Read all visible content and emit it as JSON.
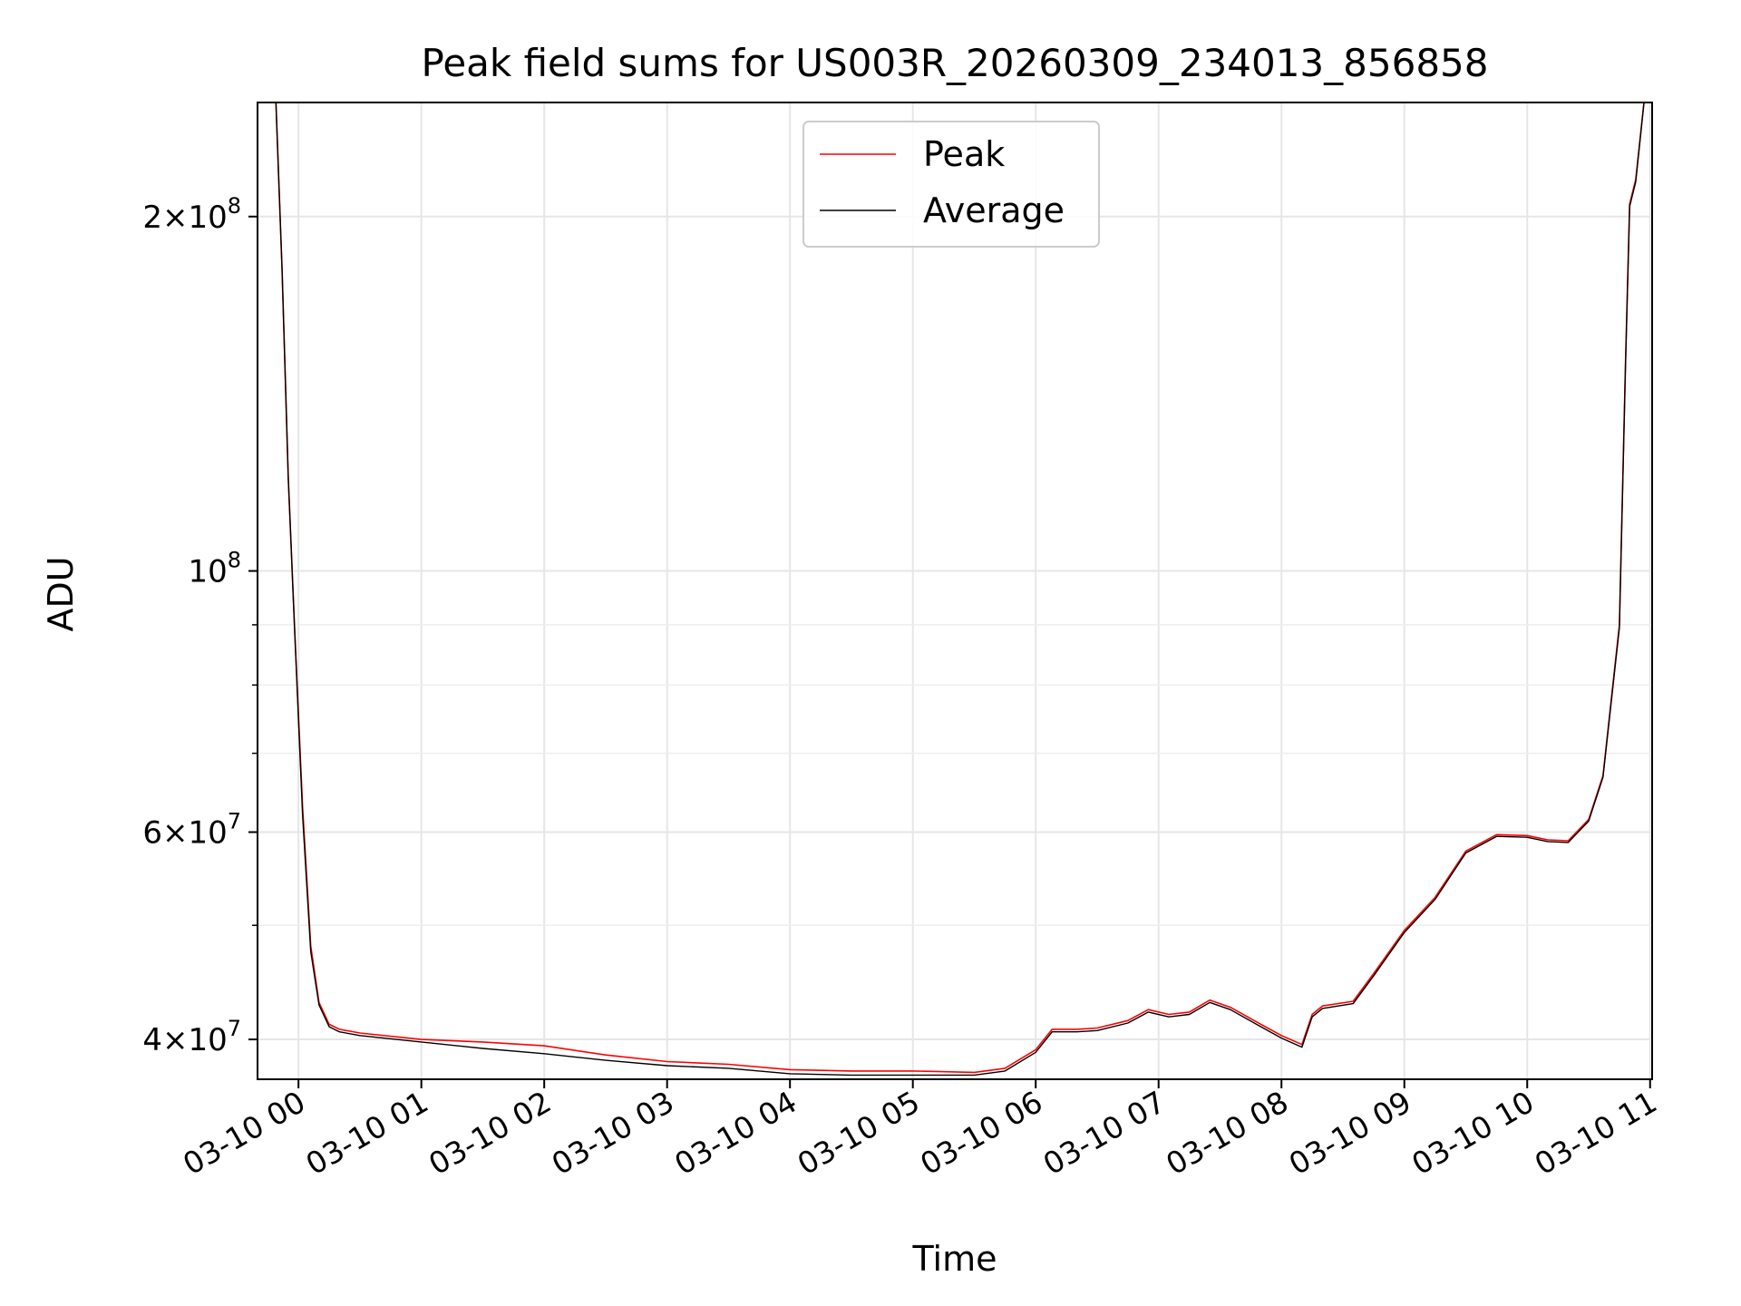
{
  "chart_data": {
    "type": "line",
    "title": "Peak field sums for US003R_20260309_234013_856858",
    "xlabel": "Time",
    "ylabel": "ADU",
    "yscale": "log",
    "grid": true,
    "legend_position": "upper-center",
    "xlim": [
      "2026-03-09 23:40",
      "2026-03-10 11:01"
    ],
    "ylim": [
      37000000,
      250000000
    ],
    "x_ticks": [
      {
        "t": "2026-03-10 00:00",
        "label": "03-10 00"
      },
      {
        "t": "2026-03-10 01:00",
        "label": "03-10 01"
      },
      {
        "t": "2026-03-10 02:00",
        "label": "03-10 02"
      },
      {
        "t": "2026-03-10 03:00",
        "label": "03-10 03"
      },
      {
        "t": "2026-03-10 04:00",
        "label": "03-10 04"
      },
      {
        "t": "2026-03-10 05:00",
        "label": "03-10 05"
      },
      {
        "t": "2026-03-10 06:00",
        "label": "03-10 06"
      },
      {
        "t": "2026-03-10 07:00",
        "label": "03-10 07"
      },
      {
        "t": "2026-03-10 08:00",
        "label": "03-10 08"
      },
      {
        "t": "2026-03-10 09:00",
        "label": "03-10 09"
      },
      {
        "t": "2026-03-10 10:00",
        "label": "03-10 10"
      },
      {
        "t": "2026-03-10 11:00",
        "label": "03-10 11"
      }
    ],
    "y_major_ticks": [
      {
        "value": 40000000,
        "mant": "4",
        "exp": "7"
      },
      {
        "value": 60000000,
        "mant": "6",
        "exp": "7"
      },
      {
        "value": 100000000,
        "mant": "",
        "exp": "8"
      },
      {
        "value": 200000000,
        "mant": "2",
        "exp": "8"
      }
    ],
    "y_minor_ticks": [
      50000000,
      70000000,
      80000000,
      90000000
    ],
    "colors": {
      "peak": "#ff0000",
      "average": "#000000"
    },
    "series": [
      {
        "name": "Peak",
        "color": "#ff0000",
        "x": [
          "2026-03-09 23:49",
          "2026-03-09 23:52",
          "2026-03-09 23:55",
          "2026-03-09 23:58",
          "2026-03-10 00:02",
          "2026-03-10 00:06",
          "2026-03-10 00:10",
          "2026-03-10 00:15",
          "2026-03-10 00:20",
          "2026-03-10 00:30",
          "2026-03-10 01:00",
          "2026-03-10 01:30",
          "2026-03-10 02:00",
          "2026-03-10 02:30",
          "2026-03-10 03:00",
          "2026-03-10 03:30",
          "2026-03-10 04:00",
          "2026-03-10 04:30",
          "2026-03-10 05:00",
          "2026-03-10 05:30",
          "2026-03-10 05:45",
          "2026-03-10 06:00",
          "2026-03-10 06:08",
          "2026-03-10 06:20",
          "2026-03-10 06:30",
          "2026-03-10 06:45",
          "2026-03-10 06:55",
          "2026-03-10 07:05",
          "2026-03-10 07:15",
          "2026-03-10 07:25",
          "2026-03-10 07:35",
          "2026-03-10 07:50",
          "2026-03-10 08:00",
          "2026-03-10 08:10",
          "2026-03-10 08:15",
          "2026-03-10 08:20",
          "2026-03-10 08:35",
          "2026-03-10 08:45",
          "2026-03-10 09:00",
          "2026-03-10 09:15",
          "2026-03-10 09:30",
          "2026-03-10 09:45",
          "2026-03-10 10:00",
          "2026-03-10 10:10",
          "2026-03-10 10:20",
          "2026-03-10 10:30",
          "2026-03-10 10:37",
          "2026-03-10 10:45",
          "2026-03-10 10:48",
          "2026-03-10 10:50",
          "2026-03-10 10:53",
          "2026-03-10 10:57"
        ],
        "y": [
          250000000,
          180000000,
          120000000,
          90000000,
          63000000,
          48000000,
          43000000,
          41200000,
          40800000,
          40500000,
          40000000,
          39800000,
          39500000,
          38800000,
          38300000,
          38100000,
          37700000,
          37600000,
          37600000,
          37500000,
          37800000,
          39200000,
          40800000,
          40800000,
          40900000,
          41500000,
          42400000,
          42000000,
          42200000,
          43200000,
          42600000,
          41200000,
          40300000,
          39600000,
          42000000,
          42700000,
          43100000,
          45500000,
          49500000,
          52800000,
          57800000,
          59700000,
          59600000,
          59100000,
          59000000,
          61500000,
          67000000,
          90000000,
          150000000,
          205000000,
          215000000,
          250000000
        ]
      },
      {
        "name": "Average",
        "color": "#000000",
        "x": [
          "2026-03-09 23:49",
          "2026-03-09 23:52",
          "2026-03-09 23:55",
          "2026-03-09 23:58",
          "2026-03-10 00:02",
          "2026-03-10 00:06",
          "2026-03-10 00:10",
          "2026-03-10 00:15",
          "2026-03-10 00:20",
          "2026-03-10 00:30",
          "2026-03-10 01:00",
          "2026-03-10 01:30",
          "2026-03-10 02:00",
          "2026-03-10 02:30",
          "2026-03-10 03:00",
          "2026-03-10 03:30",
          "2026-03-10 04:00",
          "2026-03-10 04:30",
          "2026-03-10 05:00",
          "2026-03-10 05:30",
          "2026-03-10 05:45",
          "2026-03-10 06:00",
          "2026-03-10 06:08",
          "2026-03-10 06:20",
          "2026-03-10 06:30",
          "2026-03-10 06:45",
          "2026-03-10 06:55",
          "2026-03-10 07:05",
          "2026-03-10 07:15",
          "2026-03-10 07:25",
          "2026-03-10 07:35",
          "2026-03-10 07:50",
          "2026-03-10 08:00",
          "2026-03-10 08:10",
          "2026-03-10 08:15",
          "2026-03-10 08:20",
          "2026-03-10 08:35",
          "2026-03-10 08:45",
          "2026-03-10 09:00",
          "2026-03-10 09:15",
          "2026-03-10 09:30",
          "2026-03-10 09:45",
          "2026-03-10 10:00",
          "2026-03-10 10:10",
          "2026-03-10 10:20",
          "2026-03-10 10:30",
          "2026-03-10 10:37",
          "2026-03-10 10:45",
          "2026-03-10 10:48",
          "2026-03-10 10:50",
          "2026-03-10 10:53",
          "2026-03-10 10:57"
        ],
        "y": [
          250000000,
          180000000,
          120000000,
          90000000,
          62000000,
          47500000,
          42800000,
          41000000,
          40600000,
          40300000,
          39800000,
          39300000,
          38900000,
          38400000,
          38000000,
          37800000,
          37400000,
          37300000,
          37300000,
          37300000,
          37600000,
          39000000,
          40600000,
          40600000,
          40700000,
          41300000,
          42200000,
          41800000,
          42000000,
          43000000,
          42400000,
          41000000,
          40100000,
          39400000,
          41800000,
          42500000,
          42900000,
          45300000,
          49300000,
          52600000,
          57600000,
          59500000,
          59400000,
          58900000,
          58800000,
          61300000,
          66800000,
          89500000,
          149000000,
          204000000,
          214000000,
          250000000
        ]
      }
    ]
  }
}
